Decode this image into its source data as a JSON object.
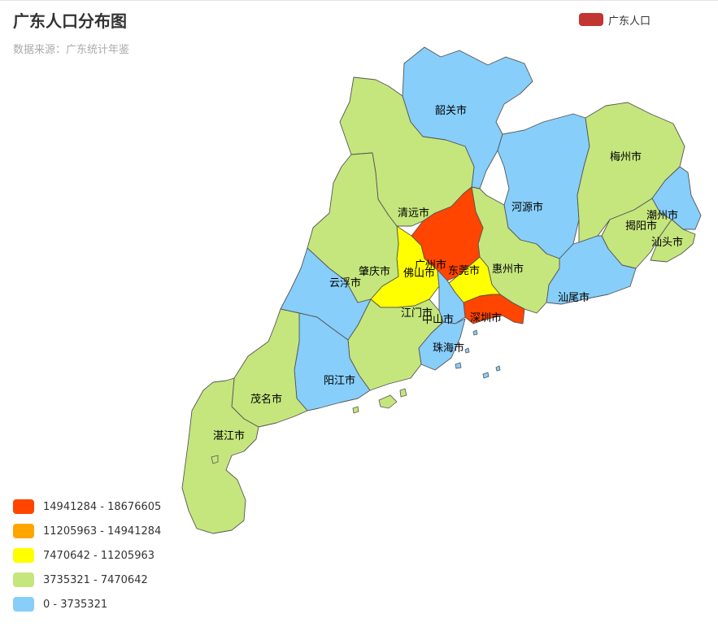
{
  "title": "广东人口分布图",
  "subtitle": "数据来源：广东统计年鉴",
  "legend": {
    "label": "广东人口",
    "color": "#c23531"
  },
  "visual_map": [
    {
      "label": "14941284 - 18676605",
      "color": "#ff4500"
    },
    {
      "label": "11205963 - 14941284",
      "color": "#ffa500"
    },
    {
      "label": "7470642 - 11205963",
      "color": "#ffff00"
    },
    {
      "label": "3735321 - 7470642",
      "color": "#c5e67d"
    },
    {
      "label": "0 - 3735321",
      "color": "#87cefa"
    }
  ],
  "cities": [
    {
      "id": "shaoguan",
      "name": "韶关市",
      "tier": 4
    },
    {
      "id": "qingyuan",
      "name": "清远市",
      "tier": 3
    },
    {
      "id": "heyuan",
      "name": "河源市",
      "tier": 4
    },
    {
      "id": "meizhou",
      "name": "梅州市",
      "tier": 3
    },
    {
      "id": "chaozhou",
      "name": "潮州市",
      "tier": 4
    },
    {
      "id": "jieyang",
      "name": "揭阳市",
      "tier": 3
    },
    {
      "id": "shantou",
      "name": "汕头市",
      "tier": 3
    },
    {
      "id": "shanwei",
      "name": "汕尾市",
      "tier": 4
    },
    {
      "id": "huizhou",
      "name": "惠州市",
      "tier": 3
    },
    {
      "id": "guangzhou",
      "name": "广州市",
      "tier": 0
    },
    {
      "id": "shenzhen",
      "name": "深圳市",
      "tier": 0
    },
    {
      "id": "dongguan",
      "name": "东莞市",
      "tier": 2
    },
    {
      "id": "foshan",
      "name": "佛山市",
      "tier": 2
    },
    {
      "id": "zhongshan",
      "name": "中山市",
      "tier": 4
    },
    {
      "id": "zhuhai",
      "name": "珠海市",
      "tier": 4
    },
    {
      "id": "jiangmen",
      "name": "江门市",
      "tier": 3
    },
    {
      "id": "zhaoqing",
      "name": "肇庆市",
      "tier": 3
    },
    {
      "id": "yunfu",
      "name": "云浮市",
      "tier": 4
    },
    {
      "id": "yangjiang",
      "name": "阳江市",
      "tier": 4
    },
    {
      "id": "maoming",
      "name": "茂名市",
      "tier": 3
    },
    {
      "id": "zhanjiang",
      "name": "湛江市",
      "tier": 3
    }
  ]
}
